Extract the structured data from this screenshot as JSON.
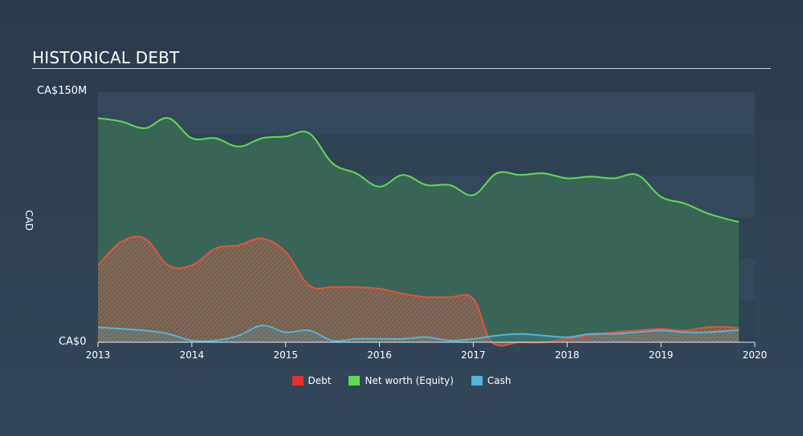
{
  "header": {
    "title": "HISTORICAL DEBT"
  },
  "axis": {
    "y_top_label": "CA$150M",
    "y_bottom_label": "CA$0",
    "y_title": "CAD"
  },
  "chart_data": {
    "type": "area",
    "title": "HISTORICAL DEBT",
    "ylabel": "CAD",
    "ylim": [
      0,
      150
    ],
    "xlim": [
      2013,
      2020
    ],
    "x_ticks": [
      "2013",
      "2014",
      "2015",
      "2016",
      "2017",
      "2018",
      "2019",
      "2020"
    ],
    "grid": true,
    "legend": "bottom-center",
    "colors": {
      "debt": "#e8503a",
      "equity": "#5fdc4d",
      "cash": "#4fb7dd"
    },
    "series": [
      {
        "name": "Net worth (Equity)",
        "points": [
          [
            2013.0,
            134
          ],
          [
            2013.25,
            132
          ],
          [
            2013.5,
            128
          ],
          [
            2013.75,
            134
          ],
          [
            2014.0,
            122
          ],
          [
            2014.25,
            122
          ],
          [
            2014.5,
            117
          ],
          [
            2014.75,
            122
          ],
          [
            2015.0,
            123
          ],
          [
            2015.25,
            125
          ],
          [
            2015.5,
            107
          ],
          [
            2015.75,
            101
          ],
          [
            2016.0,
            93
          ],
          [
            2016.25,
            100
          ],
          [
            2016.5,
            94
          ],
          [
            2016.75,
            94
          ],
          [
            2017.0,
            88
          ],
          [
            2017.25,
            101
          ],
          [
            2017.5,
            100
          ],
          [
            2017.75,
            101
          ],
          [
            2018.0,
            98
          ],
          [
            2018.25,
            99
          ],
          [
            2018.5,
            98
          ],
          [
            2018.75,
            100
          ],
          [
            2019.0,
            87
          ],
          [
            2019.25,
            83
          ],
          [
            2019.5,
            77
          ],
          [
            2019.75,
            73
          ],
          [
            2019.83,
            72
          ]
        ]
      },
      {
        "name": "Debt",
        "points": [
          [
            2013.0,
            46
          ],
          [
            2013.25,
            60
          ],
          [
            2013.5,
            62
          ],
          [
            2013.75,
            46
          ],
          [
            2014.0,
            46
          ],
          [
            2014.25,
            56
          ],
          [
            2014.5,
            58
          ],
          [
            2014.75,
            62
          ],
          [
            2015.0,
            54
          ],
          [
            2015.25,
            34
          ],
          [
            2015.5,
            33
          ],
          [
            2015.75,
            33
          ],
          [
            2016.0,
            32
          ],
          [
            2016.25,
            29
          ],
          [
            2016.5,
            27
          ],
          [
            2016.75,
            27
          ],
          [
            2017.0,
            26
          ],
          [
            2017.2,
            0
          ],
          [
            2017.5,
            0
          ],
          [
            2017.75,
            0
          ],
          [
            2018.0,
            2
          ],
          [
            2018.25,
            4
          ],
          [
            2018.5,
            6
          ],
          [
            2018.75,
            7
          ],
          [
            2019.0,
            8
          ],
          [
            2019.25,
            7
          ],
          [
            2019.5,
            9
          ],
          [
            2019.75,
            9
          ],
          [
            2019.83,
            8
          ]
        ]
      },
      {
        "name": "Cash",
        "points": [
          [
            2013.0,
            9
          ],
          [
            2013.25,
            8
          ],
          [
            2013.5,
            7
          ],
          [
            2013.75,
            5
          ],
          [
            2014.0,
            1
          ],
          [
            2014.25,
            1
          ],
          [
            2014.5,
            4
          ],
          [
            2014.75,
            10
          ],
          [
            2015.0,
            6
          ],
          [
            2015.25,
            7
          ],
          [
            2015.5,
            1
          ],
          [
            2015.75,
            2
          ],
          [
            2016.0,
            2
          ],
          [
            2016.25,
            2
          ],
          [
            2016.5,
            3
          ],
          [
            2016.75,
            1
          ],
          [
            2017.0,
            2
          ],
          [
            2017.25,
            4
          ],
          [
            2017.5,
            5
          ],
          [
            2017.75,
            4
          ],
          [
            2018.0,
            3
          ],
          [
            2018.25,
            5
          ],
          [
            2018.5,
            5
          ],
          [
            2018.75,
            6
          ],
          [
            2019.0,
            7
          ],
          [
            2019.25,
            6
          ],
          [
            2019.5,
            6
          ],
          [
            2019.75,
            7
          ],
          [
            2019.83,
            7
          ]
        ]
      }
    ]
  }
}
